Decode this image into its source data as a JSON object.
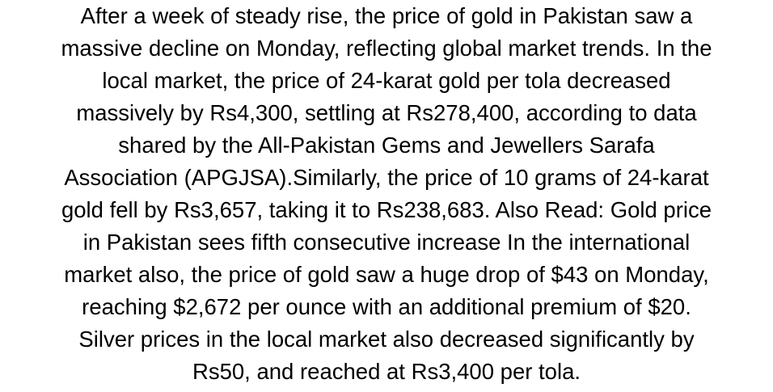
{
  "article": {
    "lines": [
      "After a week of steady rise, the price of gold in Pakistan saw a",
      "massive decline on Monday, reflecting global market trends. In the",
      "local market, the price of 24-karat gold per tola decreased",
      "massively by Rs4,300, settling at Rs278,400, according to data",
      "shared by the All-Pakistan Gems and Jewellers Sarafa",
      "Association (APGJSA).Similarly, the price of 10 grams of 24-karat",
      "gold fell by Rs3,657, taking it to Rs238,683. Also Read: Gold price",
      "in Pakistan sees fifth consecutive increase In the international",
      "market also, the price of gold saw a huge drop of $43 on Monday,",
      "reaching $2,672 per ounce with an additional premium of $20.",
      "Silver prices in the local market also decreased significantly by",
      "Rs50, and reached at Rs3,400 per tola."
    ]
  },
  "colors": {
    "background": "#ffffff",
    "text": "#000000"
  }
}
